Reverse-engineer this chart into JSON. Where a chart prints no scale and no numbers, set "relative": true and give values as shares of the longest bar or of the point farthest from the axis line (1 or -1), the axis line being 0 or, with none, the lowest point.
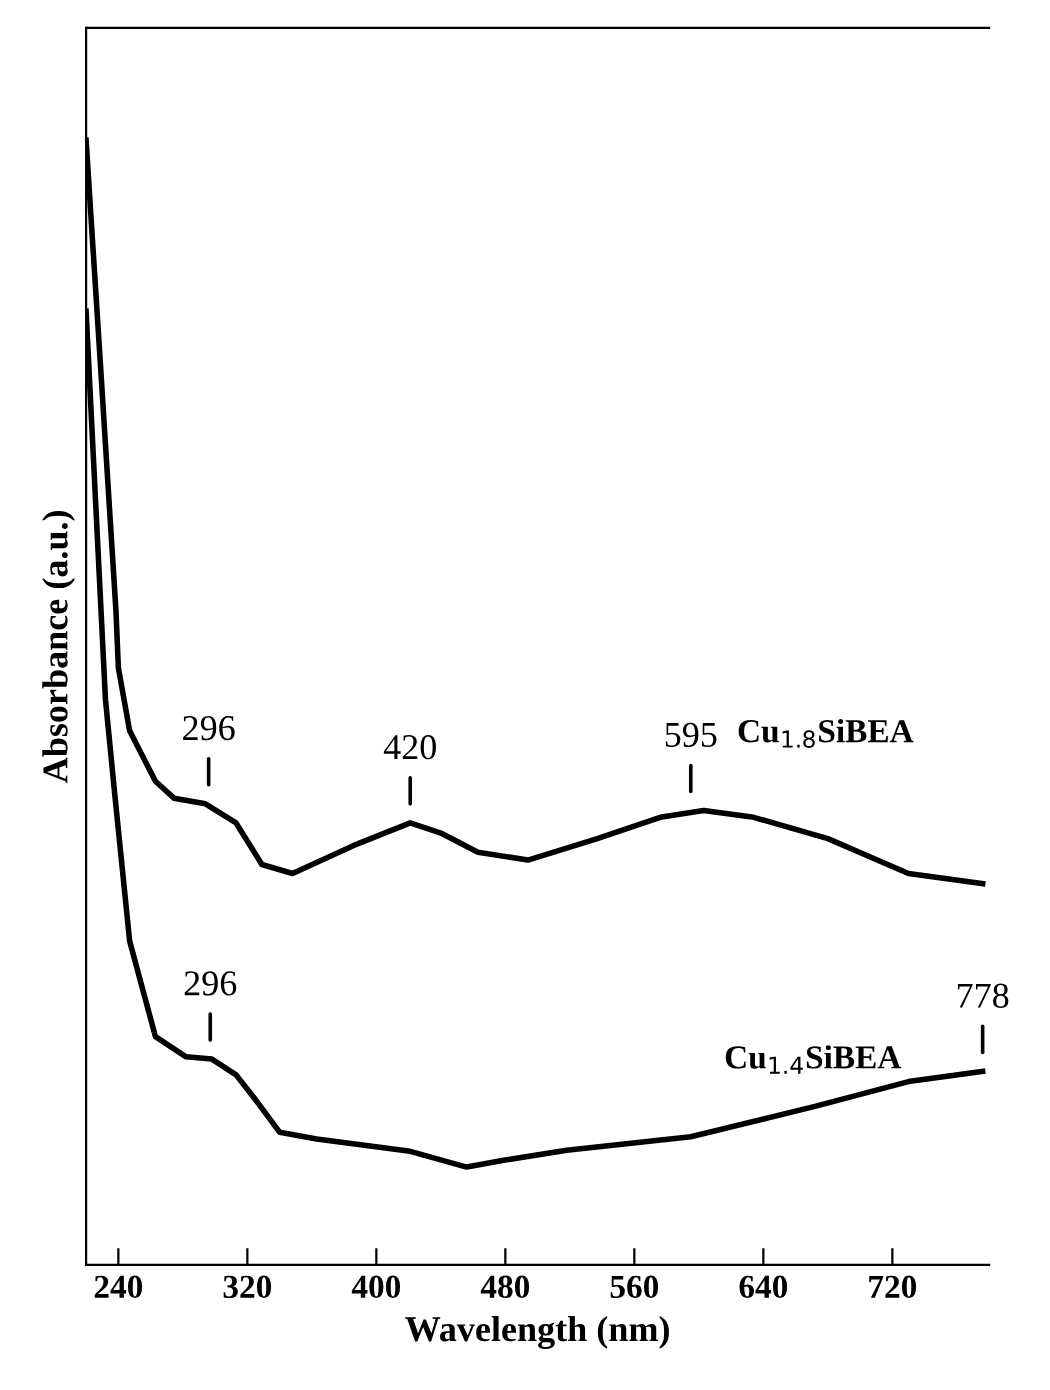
{
  "chart_data": {
    "type": "line",
    "xlabel": "Wavelength (nm)",
    "ylabel": "Absorbance (a.u.)",
    "relative": true,
    "xlim": [
      220,
      780
    ],
    "xticks": [
      240,
      320,
      400,
      480,
      560,
      640,
      720
    ],
    "tick_labels": "x",
    "grid": false,
    "legend": false,
    "marker": "none",
    "line_style": "solid",
    "series": [
      {
        "name": "Cu$_{1.8}$SiBEA",
        "color": "#000000",
        "x": [
          220,
          229,
          238.5,
          240,
          247,
          263,
          274.5,
          294,
          313,
          329,
          348,
          386,
          421,
          440,
          463,
          494,
          537,
          576,
          603,
          634,
          680,
          730,
          776
        ],
        "values": [
          1.0,
          0.798,
          0.582,
          0.531,
          0.475,
          0.43,
          0.415,
          0.41,
          0.393,
          0.356,
          0.348,
          0.373,
          0.393,
          0.384,
          0.367,
          0.36,
          0.379,
          0.398,
          0.404,
          0.398,
          0.379,
          0.348,
          0.339
        ]
      },
      {
        "name": "Cu$_{1.4}$SiBEA",
        "color": "#000000",
        "x": [
          220,
          232,
          237.8,
          247,
          263,
          282,
          298,
          313,
          325,
          340,
          363,
          421,
          456,
          479,
          518,
          595,
          672,
          730,
          776
        ],
        "values": [
          0.848,
          0.503,
          0.418,
          0.288,
          0.203,
          0.185,
          0.183,
          0.169,
          0.147,
          0.118,
          0.112,
          0.101,
          0.087,
          0.093,
          0.102,
          0.114,
          0.141,
          0.163,
          0.172
        ]
      }
    ],
    "annotations": [
      {
        "text": "296",
        "x": 296,
        "y": 0.41
      },
      {
        "text": "420",
        "x": 421,
        "y": 0.393
      },
      {
        "text": "595",
        "x": 595,
        "y": 0.404
      },
      {
        "text": "296",
        "x": 297,
        "y": 0.183
      },
      {
        "text": "778",
        "x": 776,
        "y": 0.172
      }
    ]
  }
}
